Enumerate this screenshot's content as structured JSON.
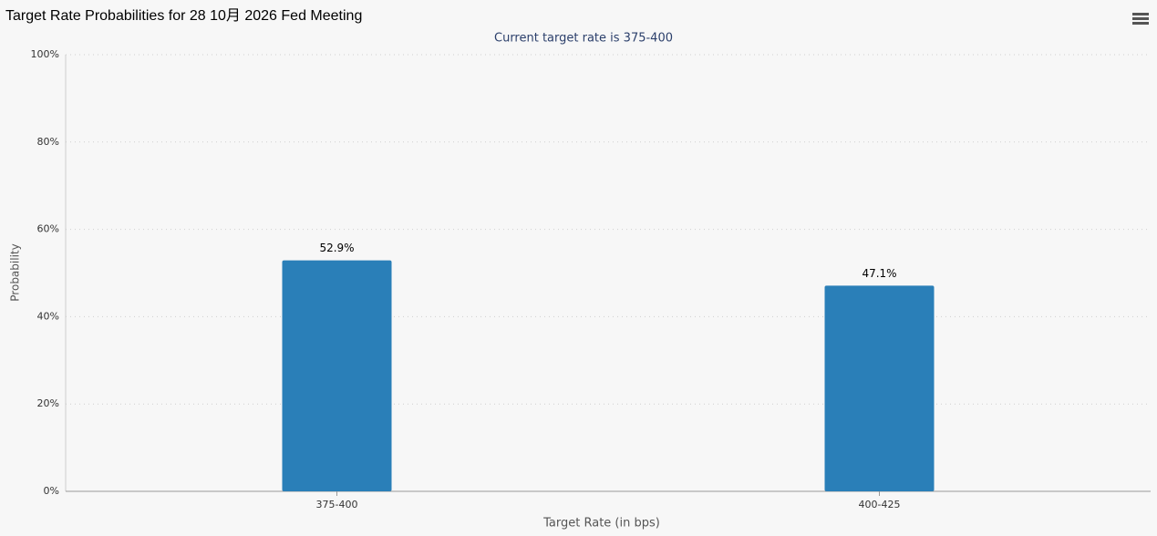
{
  "chart_data": {
    "type": "bar",
    "title": "Target Rate Probabilities for 28 10月 2026 Fed Meeting",
    "subtitle": "Current target rate is 375-400",
    "x_label": "Target Rate (in bps)",
    "y_label": "Probability",
    "categories": [
      "375-400",
      "400-425"
    ],
    "values": [
      52.9,
      47.1
    ],
    "value_labels": [
      "52.9%",
      "47.1%"
    ],
    "color": "#2a7fb8",
    "ylim": [
      0,
      100
    ],
    "yticks": [
      {
        "value": 0,
        "label": "0%"
      },
      {
        "value": 20,
        "label": "20%"
      },
      {
        "value": 40,
        "label": "40%"
      },
      {
        "value": 60,
        "label": "60%"
      },
      {
        "value": 80,
        "label": "80%"
      },
      {
        "value": 100,
        "label": "100%"
      }
    ],
    "grid": true
  }
}
